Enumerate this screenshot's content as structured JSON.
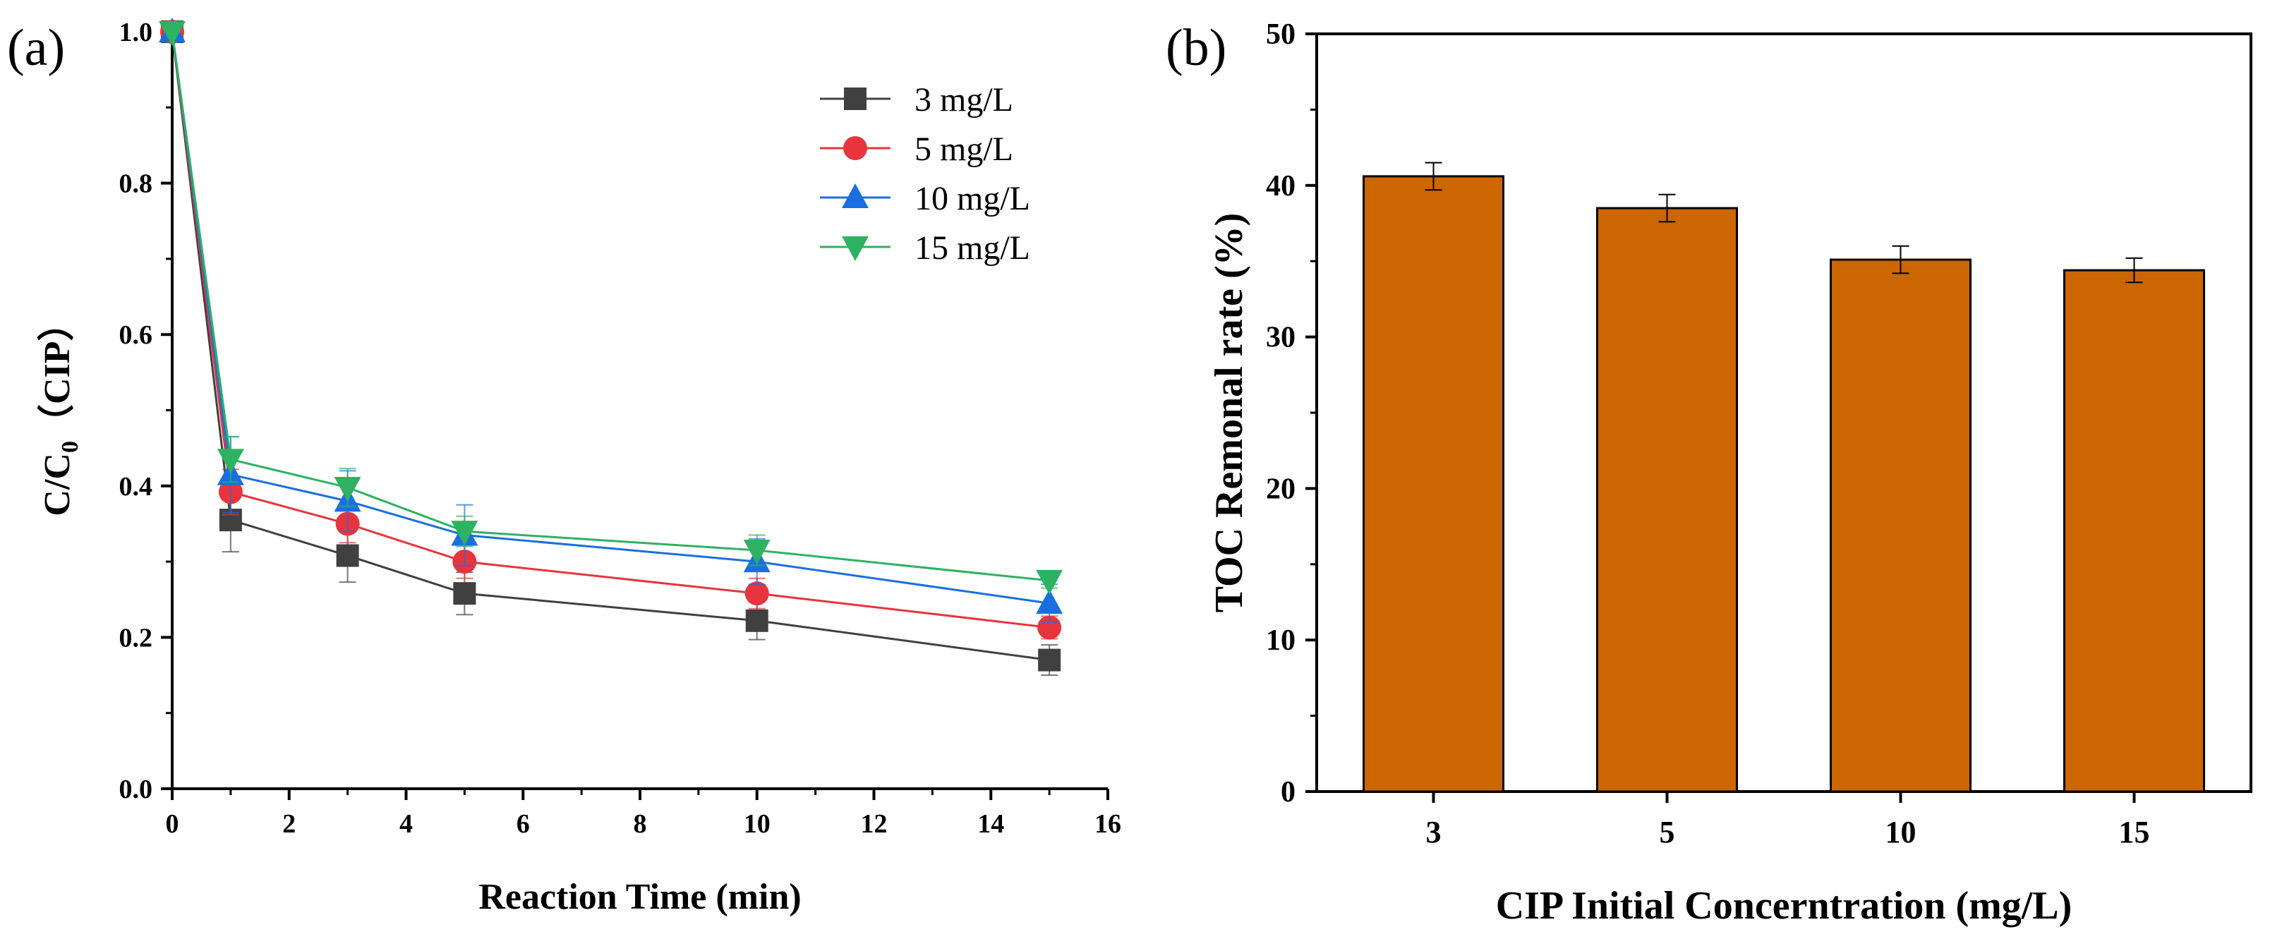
{
  "colors": {
    "s3": "#404040",
    "s5": "#e8343c",
    "s10": "#1a6fdf",
    "s15": "#2db262",
    "bar": "#cc6600",
    "axis": "#000000"
  },
  "chart_data": [
    {
      "type": "line",
      "panel_label": "(a)",
      "xlabel": "Reaction Time (min)",
      "ylabel_main": "C/C",
      "ylabel_sub": "0",
      "ylabel_suffix": "（CIP）",
      "xlim": [
        0,
        16
      ],
      "ylim": [
        0.0,
        1.0
      ],
      "xticks": [
        0,
        2,
        4,
        6,
        8,
        10,
        12,
        14,
        16
      ],
      "xtick_labels": [
        "0",
        "2",
        "4",
        "6",
        "8",
        "10",
        "12",
        "14",
        "16"
      ],
      "yticks": [
        0.0,
        0.2,
        0.4,
        0.6,
        0.8,
        1.0
      ],
      "ytick_labels": [
        "0.0",
        "0.2",
        "0.4",
        "0.6",
        "0.8",
        "1.0"
      ],
      "legend_position": "top-right",
      "x": [
        0,
        1,
        3,
        5,
        10,
        15
      ],
      "series": [
        {
          "name": "3 mg/L",
          "marker": "square",
          "color_key": "s3",
          "values": [
            1.0,
            0.355,
            0.308,
            0.258,
            0.222,
            0.17
          ],
          "errors": [
            0.0,
            0.042,
            0.035,
            0.028,
            0.025,
            0.02
          ]
        },
        {
          "name": "5 mg/L",
          "marker": "circle",
          "color_key": "s5",
          "values": [
            1.0,
            0.392,
            0.35,
            0.3,
            0.258,
            0.213
          ],
          "errors": [
            0.0,
            0.03,
            0.025,
            0.022,
            0.02,
            0.015
          ]
        },
        {
          "name": "10 mg/L",
          "marker": "triangle-up",
          "color_key": "s10",
          "values": [
            1.0,
            0.415,
            0.38,
            0.335,
            0.3,
            0.245
          ],
          "errors": [
            0.0,
            0.05,
            0.04,
            0.04,
            0.03,
            0.025
          ]
        },
        {
          "name": "15 mg/L",
          "marker": "triangle-down",
          "color_key": "s15",
          "values": [
            1.0,
            0.435,
            0.398,
            0.34,
            0.315,
            0.275
          ],
          "errors": [
            0.0,
            0.03,
            0.025,
            0.02,
            0.02,
            0.01
          ]
        }
      ]
    },
    {
      "type": "bar",
      "panel_label": "(b)",
      "xlabel": "CIP Initial Concerntration (mg/L)",
      "ylabel": "TOC Remonal rate (%)",
      "ylim": [
        0,
        50
      ],
      "yticks": [
        0,
        10,
        20,
        30,
        40,
        50
      ],
      "ytick_labels": [
        "0",
        "10",
        "20",
        "30",
        "40",
        "50"
      ],
      "categories": [
        "3",
        "5",
        "10",
        "15"
      ],
      "values": [
        40.6,
        38.5,
        35.1,
        34.4
      ],
      "errors": [
        0.9,
        0.9,
        0.9,
        0.8
      ]
    }
  ]
}
